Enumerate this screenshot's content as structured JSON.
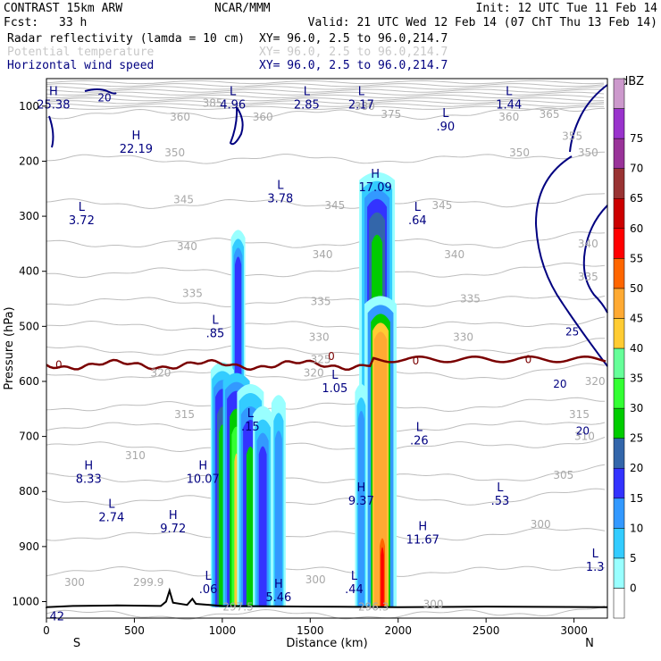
{
  "header": {
    "model": "CONTRAST 15km ARW",
    "center": "NCAR/MMM",
    "init": "Init: 12 UTC Tue 11 Feb 14",
    "fcst_label": "Fcst:",
    "fcst_value": "33 h",
    "valid": "Valid: 21 UTC Wed 12 Feb 14 (07 ChT Thu 13 Feb 14)",
    "fields": [
      {
        "name": "Radar reflectivity (lamda = 10 cm)",
        "xy": "XY=  96.0,  2.5 to  96.0,214.7",
        "color": "#000000"
      },
      {
        "name": "Potential temperature",
        "xy": "XY=  96.0,  2.5 to  96.0,214.7",
        "color": "#c8c8c8"
      },
      {
        "name": "Horizontal wind speed",
        "xy": "XY=  96.0,  2.5 to  96.0,214.7",
        "color": "#000080"
      }
    ]
  },
  "colorbar": {
    "unit": "dBZ",
    "ticks": [
      "0",
      "5",
      "10",
      "15",
      "20",
      "25",
      "30",
      "35",
      "40",
      "45",
      "50",
      "55",
      "60",
      "65",
      "70",
      "75"
    ],
    "colors": [
      "#ffffff",
      "#99ffff",
      "#33ccff",
      "#3399ff",
      "#3333ff",
      "#3366aa",
      "#00cc00",
      "#33ff33",
      "#66ff99",
      "#ffcc33",
      "#ffaa33",
      "#ff6600",
      "#ff0000",
      "#cc0000",
      "#993333",
      "#993399",
      "#9933cc",
      "#cc99cc"
    ]
  },
  "chart_data": {
    "type": "cross-section",
    "xlabel": "Distance (km)",
    "ylabel": "Pressure (hPa)",
    "x_ticks": [
      "0",
      "500",
      "1000",
      "1500",
      "2000",
      "2500",
      "3000"
    ],
    "y_ticks": [
      "100",
      "200",
      "300",
      "400",
      "500",
      "600",
      "700",
      "800",
      "900",
      "1000"
    ],
    "x_end_labels": {
      "left": "S",
      "right": "N"
    },
    "xlim": [
      0,
      3190
    ],
    "ylim": [
      1030,
      50
    ],
    "freezing_label": "0",
    "theta_labels": [
      {
        "t": "380",
        "x": 1810,
        "p": 100
      },
      {
        "t": "385",
        "x": 945,
        "p": 95
      },
      {
        "t": "360",
        "x": 760,
        "p": 120
      },
      {
        "t": "375",
        "x": 1960,
        "p": 115
      },
      {
        "t": "360",
        "x": 1230,
        "p": 120
      },
      {
        "t": "360",
        "x": 2630,
        "p": 120
      },
      {
        "t": "365",
        "x": 2860,
        "p": 115
      },
      {
        "t": "355",
        "x": 2990,
        "p": 155
      },
      {
        "t": "350",
        "x": 730,
        "p": 185
      },
      {
        "t": "350",
        "x": 2690,
        "p": 185
      },
      {
        "t": "350",
        "x": 3080,
        "p": 185
      },
      {
        "t": "345",
        "x": 780,
        "p": 270
      },
      {
        "t": "345",
        "x": 1640,
        "p": 280
      },
      {
        "t": "345",
        "x": 2250,
        "p": 280
      },
      {
        "t": "340",
        "x": 800,
        "p": 355
      },
      {
        "t": "340",
        "x": 1570,
        "p": 370
      },
      {
        "t": "340",
        "x": 2320,
        "p": 370
      },
      {
        "t": "340",
        "x": 3080,
        "p": 350
      },
      {
        "t": "335",
        "x": 830,
        "p": 440
      },
      {
        "t": "335",
        "x": 1560,
        "p": 455
      },
      {
        "t": "335",
        "x": 2410,
        "p": 450
      },
      {
        "t": "335",
        "x": 3080,
        "p": 410
      },
      {
        "t": "330",
        "x": 1550,
        "p": 520
      },
      {
        "t": "330",
        "x": 2370,
        "p": 520
      },
      {
        "t": "325",
        "x": 1560,
        "p": 560
      },
      {
        "t": "320",
        "x": 650,
        "p": 585
      },
      {
        "t": "320",
        "x": 1520,
        "p": 585
      },
      {
        "t": "320",
        "x": 3120,
        "p": 600
      },
      {
        "t": "315",
        "x": 785,
        "p": 660
      },
      {
        "t": "315",
        "x": 3030,
        "p": 660
      },
      {
        "t": "310",
        "x": 505,
        "p": 735
      },
      {
        "t": "310",
        "x": 3060,
        "p": 700
      },
      {
        "t": "305",
        "x": 2940,
        "p": 770
      },
      {
        "t": "300",
        "x": 2810,
        "p": 860
      },
      {
        "t": "300",
        "x": 160,
        "p": 965
      },
      {
        "t": "299.9",
        "x": 580,
        "p": 965
      },
      {
        "t": "300",
        "x": 1530,
        "p": 960
      },
      {
        "t": "300",
        "x": 2200,
        "p": 1005
      },
      {
        "t": "297.5",
        "x": 1090,
        "p": 1010
      },
      {
        "t": "296.3",
        "x": 1860,
        "p": 1010
      }
    ],
    "wind_labels": [
      {
        "t": "20",
        "x": 330,
        "p": 85
      },
      {
        "t": "25",
        "x": 2990,
        "p": 510
      },
      {
        "t": "20",
        "x": 2920,
        "p": 605
      },
      {
        "t": "20",
        "x": 3050,
        "p": 690
      }
    ],
    "extrema": [
      {
        "k": "H",
        "v": "25.38",
        "x": 40,
        "p": 80
      },
      {
        "k": "L",
        "v": "4.96",
        "x": 1060,
        "p": 80
      },
      {
        "k": "L",
        "v": "2.85",
        "x": 1480,
        "p": 80
      },
      {
        "k": "L",
        "v": "2.17",
        "x": 1790,
        "p": 80
      },
      {
        "k": "L",
        "v": "1.44",
        "x": 2630,
        "p": 80
      },
      {
        "k": "L",
        "v": ".90",
        "x": 2270,
        "p": 120
      },
      {
        "k": "H",
        "v": "22.19",
        "x": 510,
        "p": 160
      },
      {
        "k": "L",
        "v": "3.78",
        "x": 1330,
        "p": 250
      },
      {
        "k": "H",
        "v": "17.09",
        "x": 1870,
        "p": 230
      },
      {
        "k": "L",
        "v": "3.72",
        "x": 200,
        "p": 290
      },
      {
        "k": "L",
        "v": ".64",
        "x": 2110,
        "p": 290
      },
      {
        "k": "L",
        "v": ".85",
        "x": 960,
        "p": 495
      },
      {
        "k": "L",
        "v": "1.05",
        "x": 1640,
        "p": 595
      },
      {
        "k": "L",
        "v": ".15",
        "x": 1160,
        "p": 665
      },
      {
        "k": "L",
        "v": ".26",
        "x": 2120,
        "p": 690
      },
      {
        "k": "H",
        "v": "8.33",
        "x": 240,
        "p": 760
      },
      {
        "k": "H",
        "v": "10.07",
        "x": 890,
        "p": 760
      },
      {
        "k": "H",
        "v": "9.37",
        "x": 1790,
        "p": 800
      },
      {
        "k": "L",
        "v": ".53",
        "x": 2580,
        "p": 800
      },
      {
        "k": "L",
        "v": "2.74",
        "x": 370,
        "p": 830
      },
      {
        "k": "H",
        "v": "9.72",
        "x": 720,
        "p": 850
      },
      {
        "k": "H",
        "v": "11.67",
        "x": 2140,
        "p": 870
      },
      {
        "k": "L",
        "v": "1.3",
        "x": 3120,
        "p": 920
      },
      {
        "k": "L",
        "v": ".06",
        "x": 920,
        "p": 960
      },
      {
        "k": "L",
        "v": ".44",
        "x": 1750,
        "p": 960
      },
      {
        "k": "H",
        "v": "5.46",
        "x": 1320,
        "p": 975
      },
      {
        "k": "",
        "v": "42",
        "x": 60,
        "p": 1010
      }
    ]
  }
}
